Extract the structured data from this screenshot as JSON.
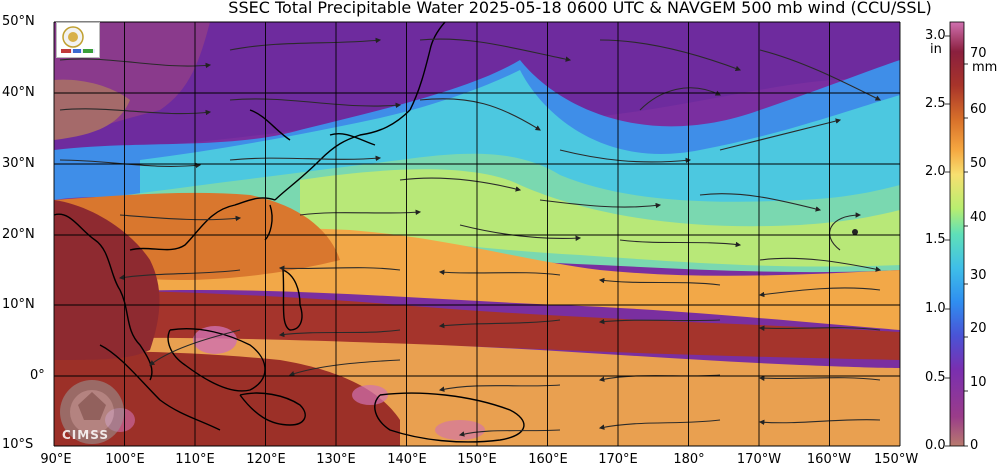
{
  "title": "SSEC Total Precipitable Water  2025-05-18 0600 UTC & NAVGEM 500 mb wind (CCU/SSL)",
  "lat_labels": [
    "50°N",
    "40°N",
    "30°N",
    "20°N",
    "10°N",
    "0°",
    "10°S"
  ],
  "lon_labels": [
    "90°E",
    "100°E",
    "110°E",
    "120°E",
    "130°E",
    "140°E",
    "150°E",
    "160°E",
    "170°E",
    "180°",
    "170°W",
    "160°W",
    "150°W"
  ],
  "colorbar": {
    "unit_in": "in",
    "unit_mm": "mm",
    "in_ticks": [
      "3.0",
      "2.5",
      "2.0",
      "1.5",
      "1.0",
      "0.5",
      "0.0"
    ],
    "mm_ticks": [
      "70",
      "60",
      "50",
      "40",
      "30",
      "20",
      "10",
      "0"
    ],
    "colors": [
      "#b87a6e",
      "#9a3c8a",
      "#7a2fb0",
      "#4a53d6",
      "#2f8ef0",
      "#3fbfe8",
      "#5fe0b8",
      "#b8ee70",
      "#f7e070",
      "#f5a640",
      "#d8702a",
      "#a8342a",
      "#8a1f3e",
      "#d070b0"
    ]
  },
  "logo_cimss": "CIMSS",
  "colors": {
    "ocean_background": "#6a2fa8",
    "grid": "#000000"
  }
}
